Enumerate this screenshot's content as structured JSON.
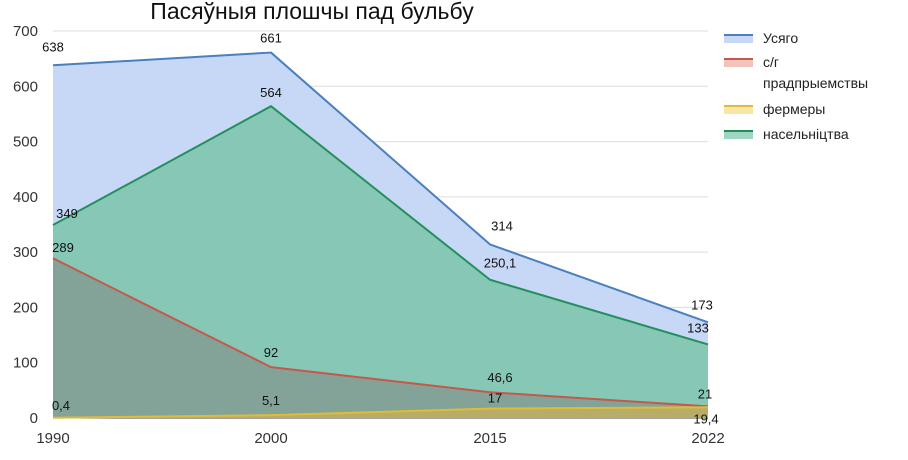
{
  "chart_data": {
    "type": "area",
    "title": "Пасяўныя плошчы пад бульбу",
    "xlabel": "",
    "ylabel": "",
    "categories": [
      "1990",
      "2000",
      "2015",
      "2022"
    ],
    "ylim": [
      0,
      700
    ],
    "yticks": [
      "0",
      "100",
      "200",
      "300",
      "400",
      "500",
      "600",
      "700"
    ],
    "grid": true,
    "legend_position": "right",
    "series": [
      {
        "name": "Усяго",
        "values": [
          638,
          661,
          314,
          173
        ],
        "labels": [
          "638",
          "661",
          "314",
          "173"
        ],
        "line_color": "#4a7fc0",
        "fill_color": "#c7d8f6"
      },
      {
        "name": "насельніцтва",
        "values": [
          349,
          564,
          250.1,
          133
        ],
        "labels": [
          "349",
          "564",
          "250,1",
          "133"
        ],
        "line_color": "#23905c",
        "fill_color": "#87c7b6"
      },
      {
        "name": "с/г прадпрыемствы",
        "values": [
          289,
          92,
          46.6,
          21
        ],
        "labels": [
          "289",
          "92",
          "46,6",
          "21"
        ],
        "line_color": "#c5584a",
        "fill_color": "#83a399"
      },
      {
        "name": "фермеры",
        "values": [
          0.4,
          5.1,
          17,
          19.4
        ],
        "labels": [
          "0,4",
          "5,1",
          "17",
          "19,4"
        ],
        "line_color": "#e0bc35",
        "fill_color": "#b8ad68"
      }
    ],
    "legend": [
      {
        "label_lines": [
          "Усяго"
        ],
        "color": "#4a7fc0",
        "fill": "#c7d8f6"
      },
      {
        "label_lines": [
          "с/г",
          "прадпрыемствы"
        ],
        "color": "#c5584a",
        "fill": "#f0c3bb"
      },
      {
        "label_lines": [
          "фермеры"
        ],
        "color": "#e0bc35",
        "fill": "#f6e6a8"
      },
      {
        "label_lines": [
          "насельніцтва"
        ],
        "color": "#23905c",
        "fill": "#9fd5c2"
      }
    ]
  }
}
